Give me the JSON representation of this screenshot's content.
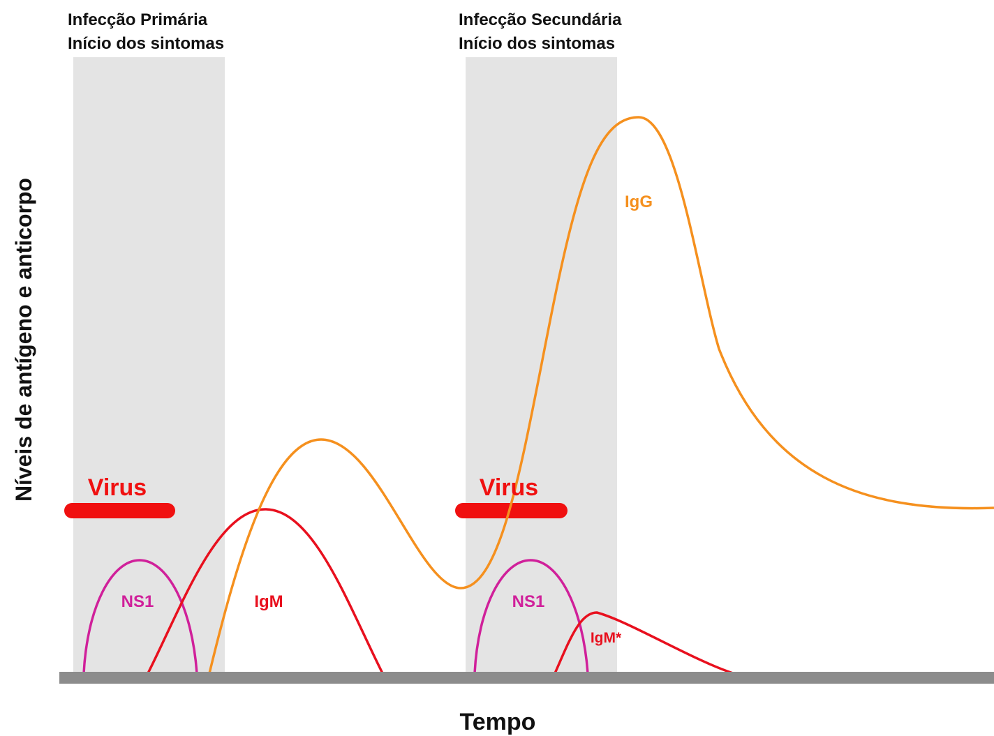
{
  "primary": {
    "title": "Infecção Primária",
    "subtitle": "Início dos sintomas",
    "virus": "Virus",
    "ns1": "NS1",
    "igm": "IgM"
  },
  "secondary": {
    "title": "Infecção Secundária",
    "subtitle": "Início dos sintomas",
    "virus": "Virus",
    "ns1": "NS1",
    "igm": "IgM*",
    "igg": "IgG"
  },
  "axes": {
    "y_label": "Níveis de antígeno e anticorpo",
    "x_label": "Tempo"
  }
}
